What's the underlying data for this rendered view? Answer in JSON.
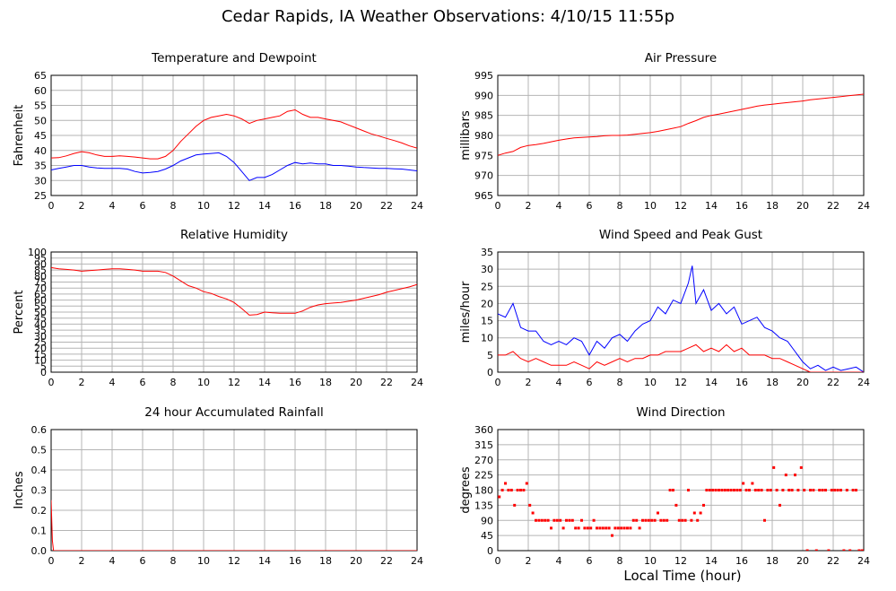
{
  "page": {
    "title": "Cedar Rapids, IA Weather Observations: 4/10/15 11:55p",
    "xlabel": "Local Time (hour)"
  },
  "colors": {
    "red": "#ff0000",
    "blue": "#0000ff",
    "grid": "#b4b4b4",
    "axis": "#000000"
  },
  "chart_data": [
    {
      "id": "temp",
      "type": "line",
      "title": "Temperature and Dewpoint",
      "ylabel": "Fahrenheit",
      "xlim": [
        0,
        24
      ],
      "ylim": [
        25,
        65
      ],
      "xticks": [
        0,
        2,
        4,
        6,
        8,
        10,
        12,
        14,
        16,
        18,
        20,
        22,
        24
      ],
      "yticks": [
        25,
        30,
        35,
        40,
        45,
        50,
        55,
        60,
        65
      ],
      "grid": true,
      "series": [
        {
          "color": "#ff0000",
          "x": [
            0,
            0.5,
            1,
            1.5,
            2,
            2.5,
            3,
            3.5,
            4,
            4.5,
            5,
            5.5,
            6,
            6.5,
            7,
            7.5,
            8,
            8.5,
            9,
            9.5,
            10,
            10.5,
            11,
            11.5,
            12,
            12.5,
            13,
            13.5,
            14,
            14.5,
            15,
            15.5,
            16,
            16.5,
            17,
            17.5,
            18,
            18.5,
            19,
            19.5,
            20,
            20.5,
            21,
            21.5,
            22,
            22.5,
            23,
            23.5,
            24
          ],
          "y": [
            37.5,
            37.6,
            38.2,
            39,
            39.6,
            39.2,
            38.5,
            38,
            38,
            38.2,
            38,
            37.8,
            37.5,
            37.2,
            37.2,
            38,
            40,
            43,
            45.5,
            48,
            50,
            51,
            51.5,
            52,
            51.5,
            50.5,
            49,
            50,
            50.5,
            51,
            51.5,
            53,
            53.5,
            52,
            51,
            51,
            50.5,
            50,
            49.5,
            48.5,
            47.5,
            46.5,
            45.5,
            44.8,
            44,
            43.3,
            42.5,
            41.5,
            40.8
          ]
        },
        {
          "color": "#0000ff",
          "x": [
            0,
            0.5,
            1,
            1.5,
            2,
            2.5,
            3,
            3.5,
            4,
            4.5,
            5,
            5.5,
            6,
            6.5,
            7,
            7.5,
            8,
            8.5,
            9,
            9.5,
            10,
            10.5,
            11,
            11.5,
            12,
            12.5,
            13,
            13.5,
            14,
            14.5,
            15,
            15.5,
            16,
            16.5,
            17,
            17.5,
            18,
            18.5,
            19,
            19.5,
            20,
            20.5,
            21,
            21.5,
            22,
            22.5,
            23,
            23.5,
            24
          ],
          "y": [
            33.5,
            34,
            34.5,
            35,
            35,
            34.5,
            34.2,
            34,
            34,
            34,
            33.8,
            33,
            32.5,
            32.7,
            33,
            33.8,
            35,
            36.5,
            37.5,
            38.5,
            38.8,
            39,
            39.2,
            38,
            36,
            33,
            30,
            31,
            31,
            32,
            33.5,
            35,
            36,
            35.5,
            35.8,
            35.5,
            35.5,
            35,
            35,
            34.8,
            34.5,
            34.3,
            34.2,
            34,
            34,
            33.9,
            33.8,
            33.5,
            33.2
          ]
        }
      ]
    },
    {
      "id": "pressure",
      "type": "line",
      "title": "Air Pressure",
      "ylabel": "millibars",
      "xlim": [
        0,
        24
      ],
      "ylim": [
        965,
        995
      ],
      "xticks": [
        0,
        2,
        4,
        6,
        8,
        10,
        12,
        14,
        16,
        18,
        20,
        22,
        24
      ],
      "yticks": [
        965,
        970,
        975,
        980,
        985,
        990,
        995
      ],
      "grid": true,
      "series": [
        {
          "color": "#ff0000",
          "x": [
            0,
            0.5,
            1,
            1.5,
            2,
            2.5,
            3,
            3.5,
            4,
            4.5,
            5,
            5.5,
            6,
            6.5,
            7,
            7.5,
            8,
            8.5,
            9,
            9.5,
            10,
            10.5,
            11,
            11.5,
            12,
            12.5,
            13,
            13.5,
            14,
            14.5,
            15,
            15.5,
            16,
            16.5,
            17,
            17.5,
            18,
            18.5,
            19,
            19.5,
            20,
            20.5,
            21,
            21.5,
            22,
            22.5,
            23,
            23.5,
            24
          ],
          "y": [
            975,
            975.6,
            976,
            977,
            977.5,
            977.7,
            978,
            978.4,
            978.8,
            979.1,
            979.4,
            979.5,
            979.6,
            979.7,
            979.9,
            980,
            980,
            980.1,
            980.3,
            980.5,
            980.7,
            981,
            981.4,
            981.8,
            982.2,
            983,
            983.7,
            984.5,
            985,
            985.3,
            985.7,
            986.1,
            986.5,
            986.9,
            987.3,
            987.6,
            987.8,
            988,
            988.2,
            988.4,
            988.6,
            988.9,
            989.1,
            989.3,
            989.5,
            989.7,
            989.9,
            990.1,
            990.3
          ]
        }
      ]
    },
    {
      "id": "humidity",
      "type": "line",
      "title": "Relative Humidity",
      "ylabel": "Percent",
      "xlim": [
        0,
        24
      ],
      "ylim": [
        0,
        100
      ],
      "xticks": [
        0,
        2,
        4,
        6,
        8,
        10,
        12,
        14,
        16,
        18,
        20,
        22,
        24
      ],
      "yticks": [
        0,
        5,
        10,
        15,
        20,
        25,
        30,
        35,
        40,
        45,
        50,
        55,
        60,
        65,
        70,
        75,
        80,
        85,
        90,
        95,
        100
      ],
      "grid": true,
      "series": [
        {
          "color": "#ff0000",
          "x": [
            0,
            0.5,
            1,
            1.5,
            2,
            2.5,
            3,
            3.5,
            4,
            4.5,
            5,
            5.5,
            6,
            6.5,
            7,
            7.5,
            8,
            8.5,
            9,
            9.5,
            10,
            10.5,
            11,
            11.5,
            12,
            12.5,
            13,
            13.5,
            14,
            14.5,
            15,
            15.5,
            16,
            16.5,
            17,
            17.5,
            18,
            18.5,
            19,
            19.5,
            20,
            20.5,
            21,
            21.5,
            22,
            22.5,
            23,
            23.5,
            24
          ],
          "y": [
            87,
            86,
            85.5,
            85,
            84,
            84.5,
            85,
            85.5,
            86,
            86,
            85.5,
            85,
            84,
            84,
            84,
            83,
            80,
            76,
            72,
            70,
            67,
            65.5,
            63,
            61,
            58,
            53,
            47.5,
            48,
            50,
            49.5,
            49,
            49,
            49,
            51,
            54,
            56,
            57,
            57.5,
            58,
            59,
            60,
            61.5,
            63,
            64.5,
            66.5,
            68,
            69.5,
            71,
            73
          ]
        }
      ]
    },
    {
      "id": "wind",
      "type": "line",
      "title": "Wind Speed and Peak Gust",
      "ylabel": "miles/hour",
      "xlim": [
        0,
        24
      ],
      "ylim": [
        0,
        35
      ],
      "xticks": [
        0,
        2,
        4,
        6,
        8,
        10,
        12,
        14,
        16,
        18,
        20,
        22,
        24
      ],
      "yticks": [
        0,
        5,
        10,
        15,
        20,
        25,
        30,
        35
      ],
      "grid": true,
      "series": [
        {
          "color": "#0000ff",
          "x": [
            0,
            0.5,
            1,
            1.5,
            2,
            2.5,
            3,
            3.5,
            4,
            4.5,
            5,
            5.5,
            6,
            6.5,
            7,
            7.5,
            8,
            8.5,
            9,
            9.5,
            10,
            10.5,
            11,
            11.5,
            12,
            12.5,
            12.75,
            13,
            13.5,
            14,
            14.5,
            15,
            15.5,
            16,
            16.5,
            17,
            17.5,
            18,
            18.5,
            19,
            19.5,
            20,
            20.5,
            21,
            21.5,
            22,
            22.5,
            23,
            23.5,
            24
          ],
          "y": [
            17,
            16,
            20,
            13,
            12,
            12,
            9,
            8,
            9,
            8,
            10,
            9,
            5,
            9,
            7,
            10,
            11,
            9,
            12,
            14,
            15,
            19,
            17,
            21,
            20,
            26,
            31,
            20,
            24,
            18,
            20,
            17,
            19,
            14,
            15,
            16,
            13,
            12,
            10,
            9,
            6,
            3,
            1,
            2,
            0.5,
            1.5,
            0.5,
            1,
            1.5,
            0
          ]
        },
        {
          "color": "#ff0000",
          "x": [
            0,
            0.5,
            1,
            1.5,
            2,
            2.5,
            3,
            3.5,
            4,
            4.5,
            5,
            5.5,
            6,
            6.5,
            7,
            7.5,
            8,
            8.5,
            9,
            9.5,
            10,
            10.5,
            11,
            11.5,
            12,
            12.5,
            13,
            13.5,
            14,
            14.5,
            15,
            15.5,
            16,
            16.5,
            17,
            17.5,
            18,
            18.5,
            19,
            19.5,
            20,
            20.5,
            21,
            21.5,
            22,
            22.5,
            23,
            23.5,
            24
          ],
          "y": [
            5,
            5,
            6,
            4,
            3,
            4,
            3,
            2,
            2,
            2,
            3,
            2,
            1,
            3,
            2,
            3,
            4,
            3,
            4,
            4,
            5,
            5,
            6,
            6,
            6,
            7,
            8,
            6,
            7,
            6,
            8,
            6,
            7,
            5,
            5,
            5,
            4,
            4,
            3,
            2,
            1,
            0,
            0,
            0,
            0,
            0,
            0,
            0,
            0
          ]
        }
      ]
    },
    {
      "id": "rain",
      "type": "line",
      "title": "24 hour Accumulated Rainfall",
      "ylabel": "Inches",
      "xlim": [
        0,
        24
      ],
      "ylim": [
        0,
        0.6
      ],
      "xticks": [
        0,
        2,
        4,
        6,
        8,
        10,
        12,
        14,
        16,
        18,
        20,
        22,
        24
      ],
      "yticks": [
        0.0,
        0.1,
        0.2,
        0.3,
        0.4,
        0.5,
        0.6
      ],
      "ytick_labels": [
        "0.0",
        "0.1",
        "0.2",
        "0.3",
        "0.4",
        "0.5",
        "0.6"
      ],
      "grid": true,
      "series": [
        {
          "color": "#ff0000",
          "x": [
            0,
            0.08,
            0.16,
            24
          ],
          "y": [
            0.25,
            0.05,
            0,
            0
          ]
        }
      ]
    },
    {
      "id": "winddir",
      "type": "scatter",
      "title": "Wind Direction",
      "ylabel": "degrees",
      "xlim": [
        0,
        24
      ],
      "ylim": [
        0,
        360
      ],
      "xticks": [
        0,
        2,
        4,
        6,
        8,
        10,
        12,
        14,
        16,
        18,
        20,
        22,
        24
      ],
      "yticks": [
        0,
        45,
        90,
        135,
        180,
        225,
        270,
        315,
        360
      ],
      "grid": true,
      "series": [
        {
          "color": "#ff0000",
          "x": [
            0.1,
            0.3,
            0.5,
            0.7,
            0.9,
            1.1,
            1.3,
            1.5,
            1.7,
            1.9,
            2.1,
            2.3,
            2.5,
            2.7,
            2.9,
            3.1,
            3.3,
            3.5,
            3.7,
            3.9,
            4.1,
            4.3,
            4.5,
            4.7,
            4.9,
            5.1,
            5.3,
            5.5,
            5.7,
            5.9,
            6.1,
            6.3,
            6.5,
            6.7,
            6.9,
            7.1,
            7.3,
            7.5,
            7.7,
            7.9,
            8.1,
            8.3,
            8.5,
            8.7,
            8.9,
            9.1,
            9.3,
            9.5,
            9.7,
            9.9,
            10.1,
            10.3,
            10.5,
            10.7,
            10.9,
            11.1,
            11.3,
            11.5,
            11.7,
            11.9,
            12.1,
            12.3,
            12.5,
            12.7,
            12.9,
            13.1,
            13.3,
            13.5,
            13.7,
            13.9,
            14.1,
            14.3,
            14.5,
            14.7,
            14.9,
            15.1,
            15.3,
            15.5,
            15.7,
            15.9,
            16.1,
            16.3,
            16.5,
            16.7,
            16.9,
            17.1,
            17.3,
            17.5,
            17.7,
            17.9,
            18.1,
            18.3,
            18.5,
            18.7,
            18.9,
            19.1,
            19.3,
            19.5,
            19.7,
            19.9,
            20.1,
            20.3,
            20.5,
            20.7,
            20.9,
            21.1,
            21.3,
            21.5,
            21.7,
            21.9,
            22.1,
            22.3,
            22.5,
            22.7,
            22.9,
            23.1,
            23.3,
            23.5,
            23.7,
            23.9
          ],
          "y": [
            160,
            180,
            200,
            180,
            180,
            135,
            180,
            180,
            180,
            200,
            135,
            112,
            90,
            90,
            90,
            90,
            90,
            67,
            90,
            90,
            90,
            67,
            90,
            90,
            90,
            67,
            67,
            90,
            67,
            67,
            67,
            90,
            67,
            67,
            67,
            67,
            67,
            45,
            67,
            67,
            67,
            67,
            67,
            67,
            90,
            90,
            67,
            90,
            90,
            90,
            90,
            90,
            112,
            90,
            90,
            90,
            180,
            180,
            135,
            90,
            90,
            90,
            180,
            90,
            112,
            90,
            112,
            135,
            180,
            180,
            180,
            180,
            180,
            180,
            180,
            180,
            180,
            180,
            180,
            180,
            200,
            180,
            180,
            200,
            180,
            180,
            180,
            90,
            180,
            180,
            247,
            180,
            135,
            180,
            225,
            180,
            180,
            225,
            180,
            247,
            180,
            0,
            180,
            180,
            0,
            180,
            180,
            180,
            0,
            180,
            180,
            180,
            180,
            0,
            180,
            0,
            180,
            180,
            0,
            0
          ]
        }
      ]
    }
  ]
}
